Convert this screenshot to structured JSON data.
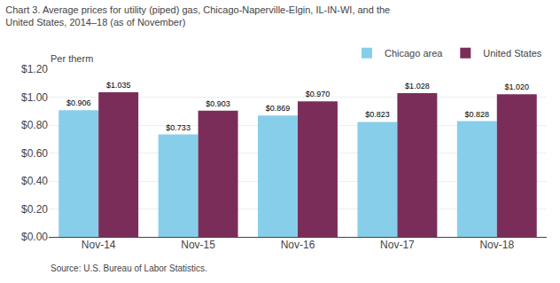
{
  "chart_data": {
    "type": "bar",
    "title": "Chart 3. Average prices for utility (piped) gas, Chicago-Naperville-Elgin, IL-IN-WI, and the\nUnited States, 2014–18 (as of November)",
    "ylabel": "Per therm",
    "categories": [
      "Nov-14",
      "Nov-15",
      "Nov-16",
      "Nov-17",
      "Nov-18"
    ],
    "series": [
      {
        "name": "Chicago area",
        "color": "#87CEEB",
        "values": [
          0.906,
          0.733,
          0.869,
          0.823,
          0.828
        ],
        "value_labels": [
          "$0.906",
          "$0.733",
          "$0.869",
          "$0.823",
          "$0.828"
        ]
      },
      {
        "name": "United States",
        "color": "#7B2D5A",
        "values": [
          1.035,
          0.903,
          0.97,
          1.028,
          1.02
        ],
        "value_labels": [
          "$1.035",
          "$0.903",
          "$0.970",
          "$1.028",
          "$1.020"
        ]
      }
    ],
    "ylim": [
      0,
      1.2
    ],
    "yticks": [
      {
        "value": 0,
        "label": "$0.00"
      },
      {
        "value": 0.2,
        "label": "$0.20"
      },
      {
        "value": 0.4,
        "label": "$0.40"
      },
      {
        "value": 0.6,
        "label": "$0.60"
      },
      {
        "value": 0.8,
        "label": "$0.80"
      },
      {
        "value": 1,
        "label": "$1.00"
      },
      {
        "value": 1.2,
        "label": "$1.20"
      }
    ],
    "grid": true,
    "legend": "upper right",
    "data_labels": true,
    "annotations": [
      "Source: U.S. Bureau of Labor Statistics."
    ]
  }
}
